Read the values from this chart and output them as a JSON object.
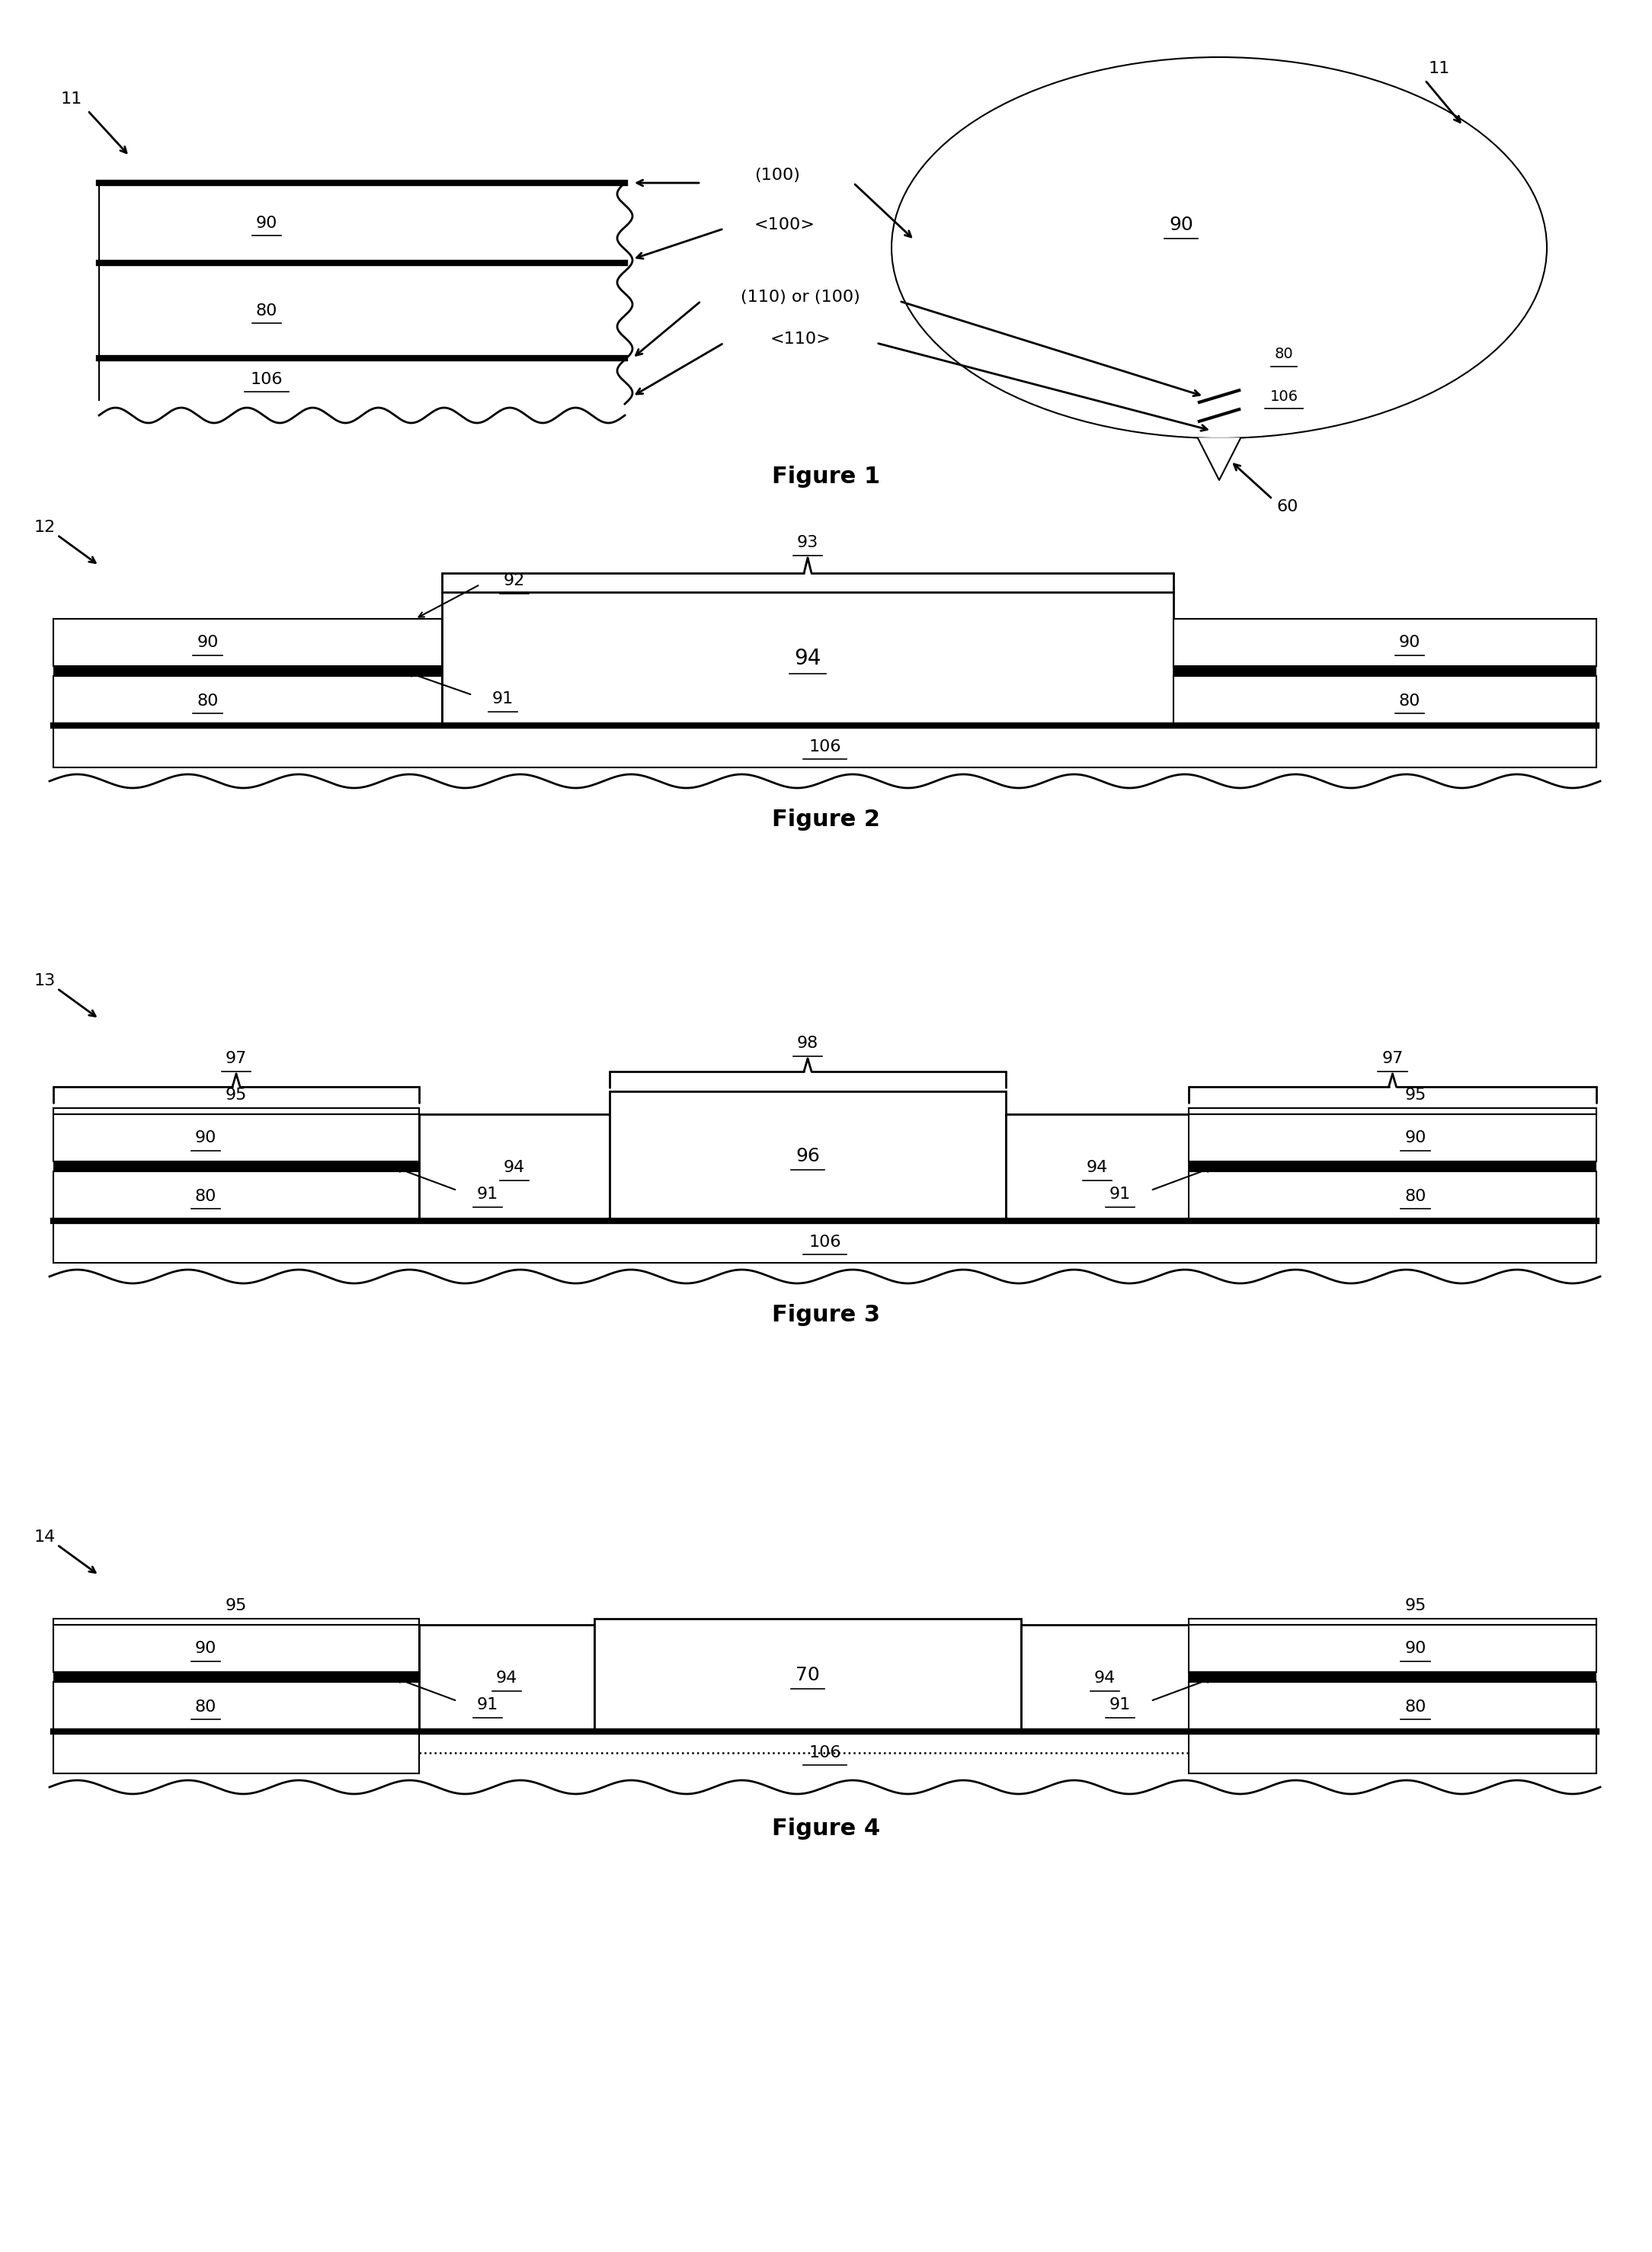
{
  "bg_color": "#ffffff",
  "line_color": "#000000",
  "lw_thick": 6,
  "lw_medium": 2.0,
  "lw_thin": 1.5,
  "fs_label": 16,
  "fs_fig": 20,
  "figures": [
    "Figure 1",
    "Figure 2",
    "Figure 3",
    "Figure 4"
  ]
}
